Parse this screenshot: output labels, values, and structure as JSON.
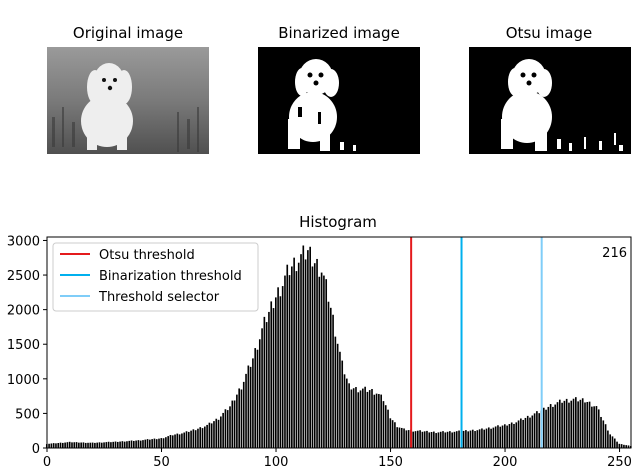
{
  "panels": [
    {
      "title": "Original image",
      "kind": "grayscale-photo"
    },
    {
      "title": "Binarized image",
      "kind": "binary-mask"
    },
    {
      "title": "Otsu image",
      "kind": "binary-mask"
    }
  ],
  "chart_data": {
    "type": "bar",
    "title": "Histogram",
    "xlabel": "",
    "ylabel": "",
    "xlim": [
      0,
      255
    ],
    "ylim": [
      0,
      3050
    ],
    "xticks": [
      0,
      50,
      100,
      150,
      200,
      250
    ],
    "yticks": [
      0,
      500,
      1000,
      1500,
      2000,
      2500,
      3000
    ],
    "grid": false,
    "legend_position": "top-left",
    "bar_color": "#000000",
    "threshold_readout": "216",
    "thresholds": [
      {
        "name": "Otsu threshold",
        "x": 159,
        "color": "#e41a1c"
      },
      {
        "name": "Binarization threshold",
        "x": 181,
        "color": "#00b0ee"
      },
      {
        "name": "Threshold selector",
        "x": 216,
        "color": "#7fcdf8"
      }
    ],
    "anchor_x": [
      0,
      10,
      20,
      30,
      40,
      50,
      55,
      60,
      65,
      70,
      75,
      80,
      85,
      90,
      95,
      100,
      103,
      106,
      109,
      112,
      114,
      117,
      120,
      123,
      126,
      129,
      132,
      135,
      138,
      141,
      144,
      147,
      150,
      153,
      156,
      160,
      170,
      180,
      190,
      200,
      205,
      210,
      215,
      220,
      225,
      230,
      235,
      240,
      243,
      246,
      250,
      255
    ],
    "anchor_y": [
      60,
      85,
      75,
      90,
      110,
      140,
      190,
      220,
      270,
      330,
      430,
      600,
      900,
      1300,
      1800,
      2200,
      2400,
      2600,
      2700,
      2780,
      2850,
      2700,
      2600,
      2200,
      1700,
      1200,
      900,
      860,
      850,
      840,
      800,
      700,
      450,
      320,
      270,
      250,
      230,
      240,
      270,
      330,
      380,
      450,
      520,
      620,
      680,
      700,
      690,
      600,
      400,
      200,
      60,
      30
    ]
  }
}
